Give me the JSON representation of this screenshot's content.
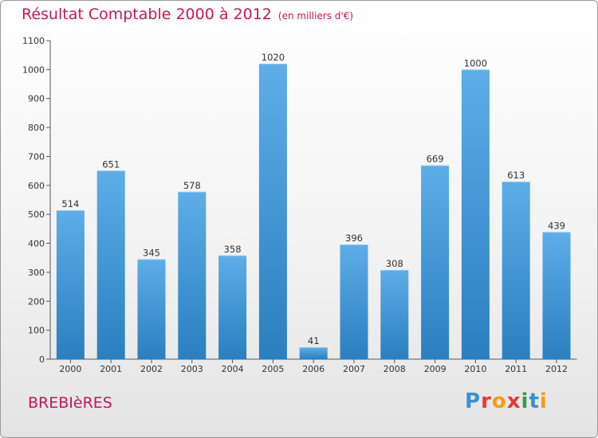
{
  "header": {
    "title": "Résultat Comptable 2000 à 2012",
    "subtitle": "(en milliers d'€)"
  },
  "footer": {
    "town": "BREBIèRES",
    "logo_letters": [
      "P",
      "r",
      "o",
      "x",
      "i",
      "t",
      "i"
    ],
    "logo_colors": [
      "#3a8fd6",
      "#e53935",
      "#f39c12",
      "#e53935",
      "#2e9e45",
      "#3a8fd6",
      "#f39c12"
    ]
  },
  "chart_data": {
    "type": "bar",
    "title": "Résultat Comptable 2000 à 2012",
    "subtitle": "(en milliers d'€)",
    "categories": [
      "2000",
      "2001",
      "2002",
      "2003",
      "2004",
      "2005",
      "2006",
      "2007",
      "2008",
      "2009",
      "2010",
      "2011",
      "2012"
    ],
    "values": [
      514,
      651,
      345,
      578,
      358,
      1020,
      41,
      396,
      308,
      669,
      1000,
      613,
      439
    ],
    "ylim": [
      0,
      1100
    ],
    "yticks": [
      0,
      100,
      200,
      300,
      400,
      500,
      600,
      700,
      800,
      900,
      1000,
      1100
    ],
    "grid": false,
    "legend": "none",
    "bar_color_top": "#5dade8",
    "bar_color_bottom": "#2a7fc0"
  }
}
